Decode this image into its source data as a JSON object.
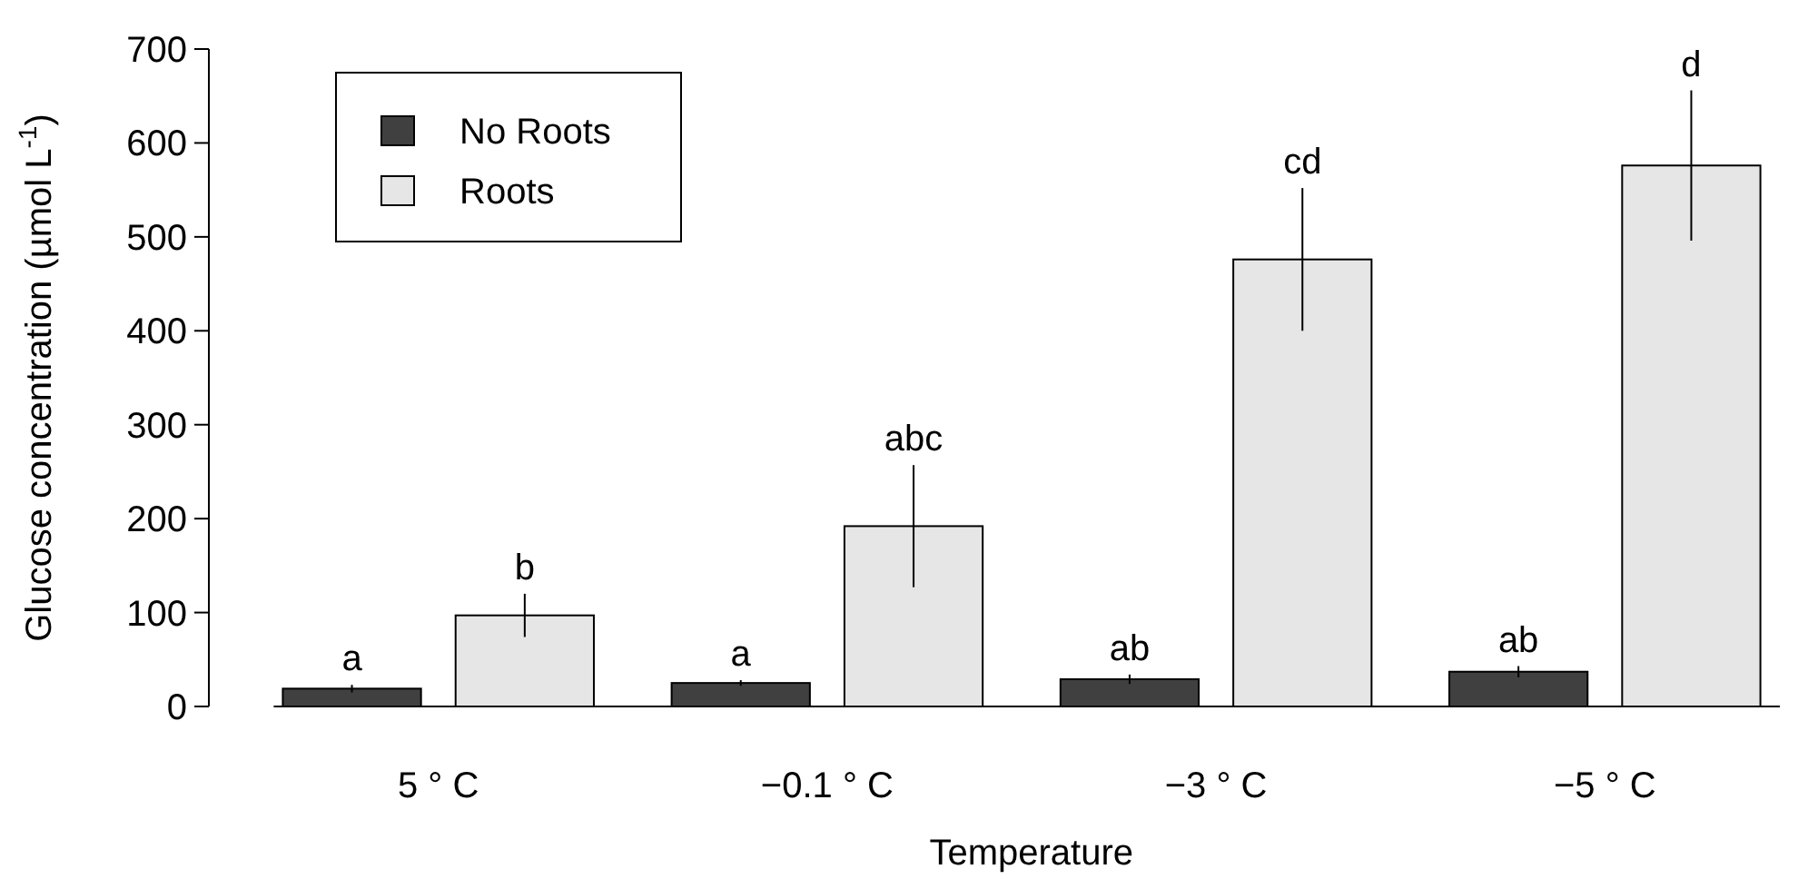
{
  "chart_data": {
    "type": "bar",
    "xlabel": "Temperature",
    "ylabel": "Glucose concentration (µmol L$^{-1}$)",
    "categories": [
      "5 ° C",
      "−0.1 ° C",
      "−3 ° C",
      "−5 ° C"
    ],
    "series": [
      {
        "name": "No Roots",
        "color": "#404040",
        "values": [
          19,
          25,
          29,
          37
        ],
        "errors": [
          4,
          3,
          5,
          6
        ],
        "value_labels": [
          "a",
          "a",
          "ab",
          "ab"
        ]
      },
      {
        "name": "Roots",
        "color": "#e6e6e6",
        "values": [
          97,
          192,
          476,
          576
        ],
        "errors": [
          23,
          65,
          76,
          80
        ],
        "value_labels": [
          "b",
          "abc",
          "cd",
          "d"
        ]
      }
    ],
    "ylim": [
      0,
      700
    ],
    "yticks": [
      0,
      100,
      200,
      300,
      400,
      500,
      600,
      700
    ],
    "legend": "top left",
    "grid": false
  }
}
